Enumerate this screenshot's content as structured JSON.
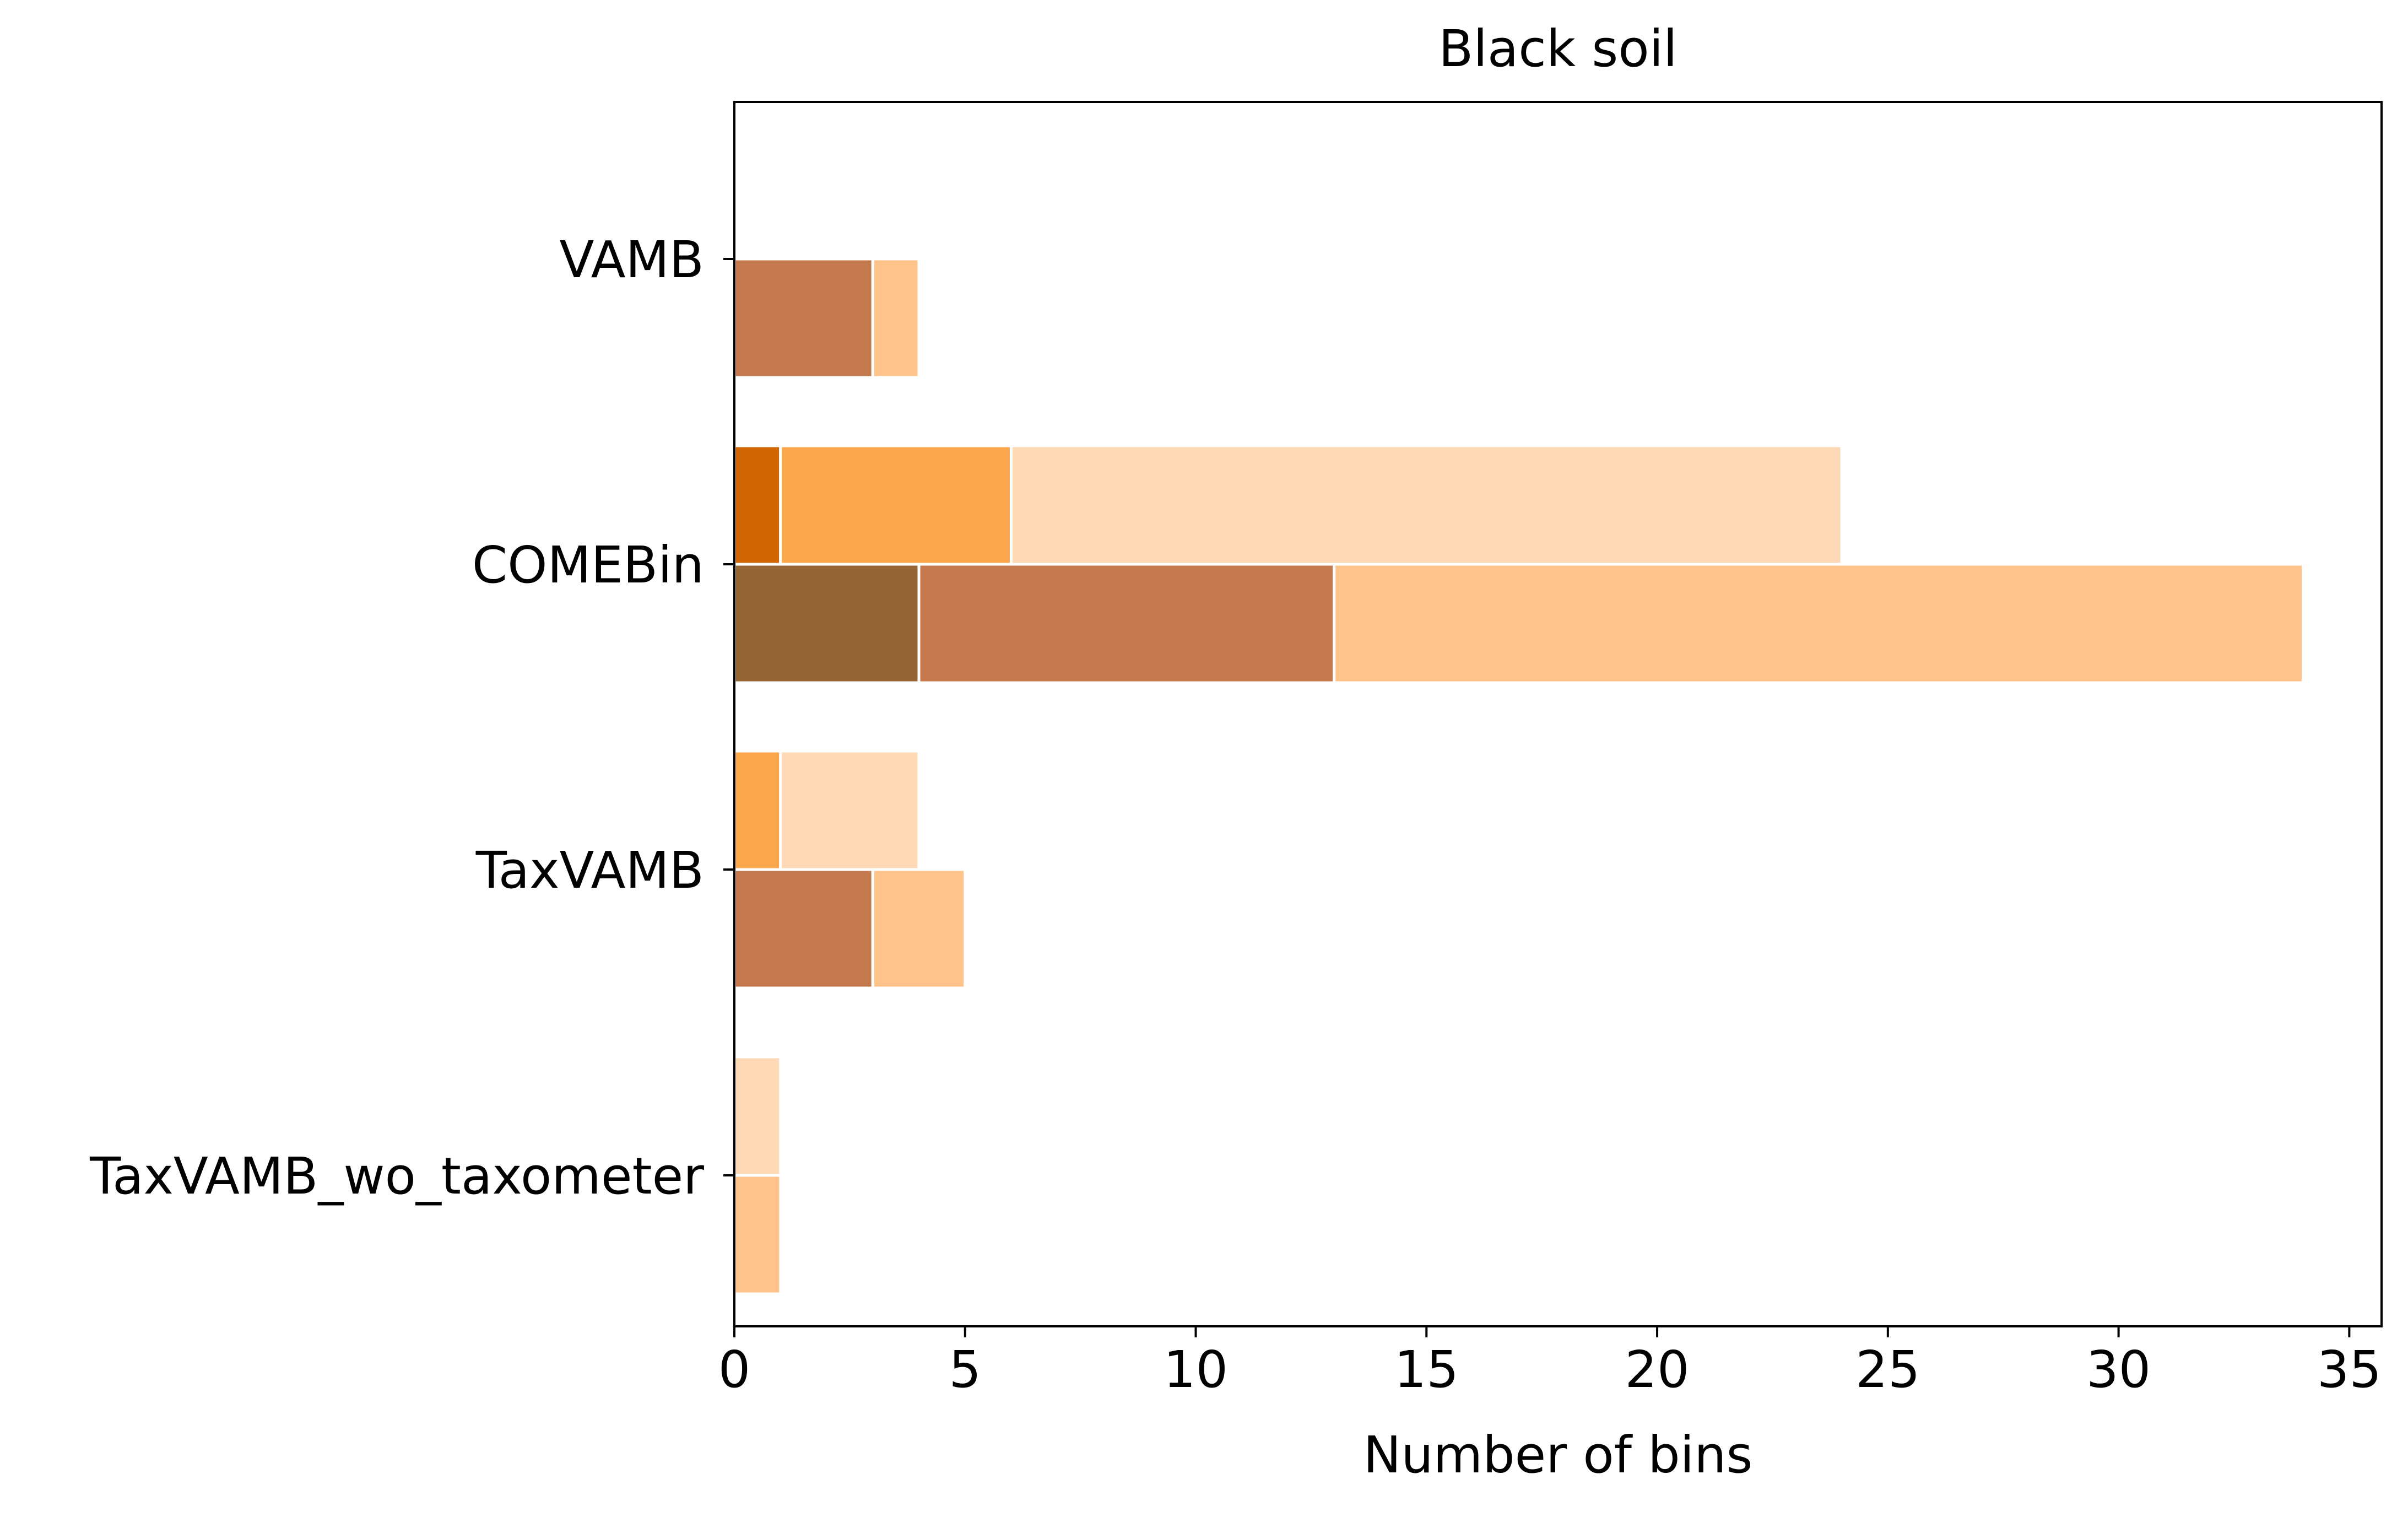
{
  "chart_data": {
    "type": "bar",
    "orientation": "horizontal",
    "stacked": true,
    "title": "Black soil",
    "xlabel": "Number of bins",
    "ylabel": "",
    "xlim": [
      0,
      35.7
    ],
    "xticks": [
      0,
      5,
      10,
      15,
      20,
      25,
      30,
      35
    ],
    "grid": false,
    "legend": "none",
    "categories": [
      "VAMB",
      "COMEBin",
      "TaxVAMB",
      "TaxVAMB_wo_taxometer"
    ],
    "groups": [
      {
        "name": "upper-bar",
        "series": [
          {
            "name": "upper-segment-1",
            "color": "#d16604",
            "values": [
              0,
              1,
              0,
              0
            ]
          },
          {
            "name": "upper-segment-2",
            "color": "#fda74d",
            "values": [
              0,
              5,
              1,
              0
            ]
          },
          {
            "name": "upper-segment-3",
            "color": "#fdd9b5",
            "values": [
              0,
              18,
              3,
              1
            ]
          }
        ]
      },
      {
        "name": "lower-bar",
        "series": [
          {
            "name": "lower-segment-1",
            "color": "#956535",
            "values": [
              0,
              4,
              0,
              0
            ]
          },
          {
            "name": "lower-segment-2",
            "color": "#c47a4e",
            "values": [
              3,
              9,
              3,
              0
            ]
          },
          {
            "name": "lower-segment-3",
            "color": "#fec38a",
            "values": [
              1,
              21,
              2,
              1
            ]
          }
        ]
      }
    ]
  }
}
